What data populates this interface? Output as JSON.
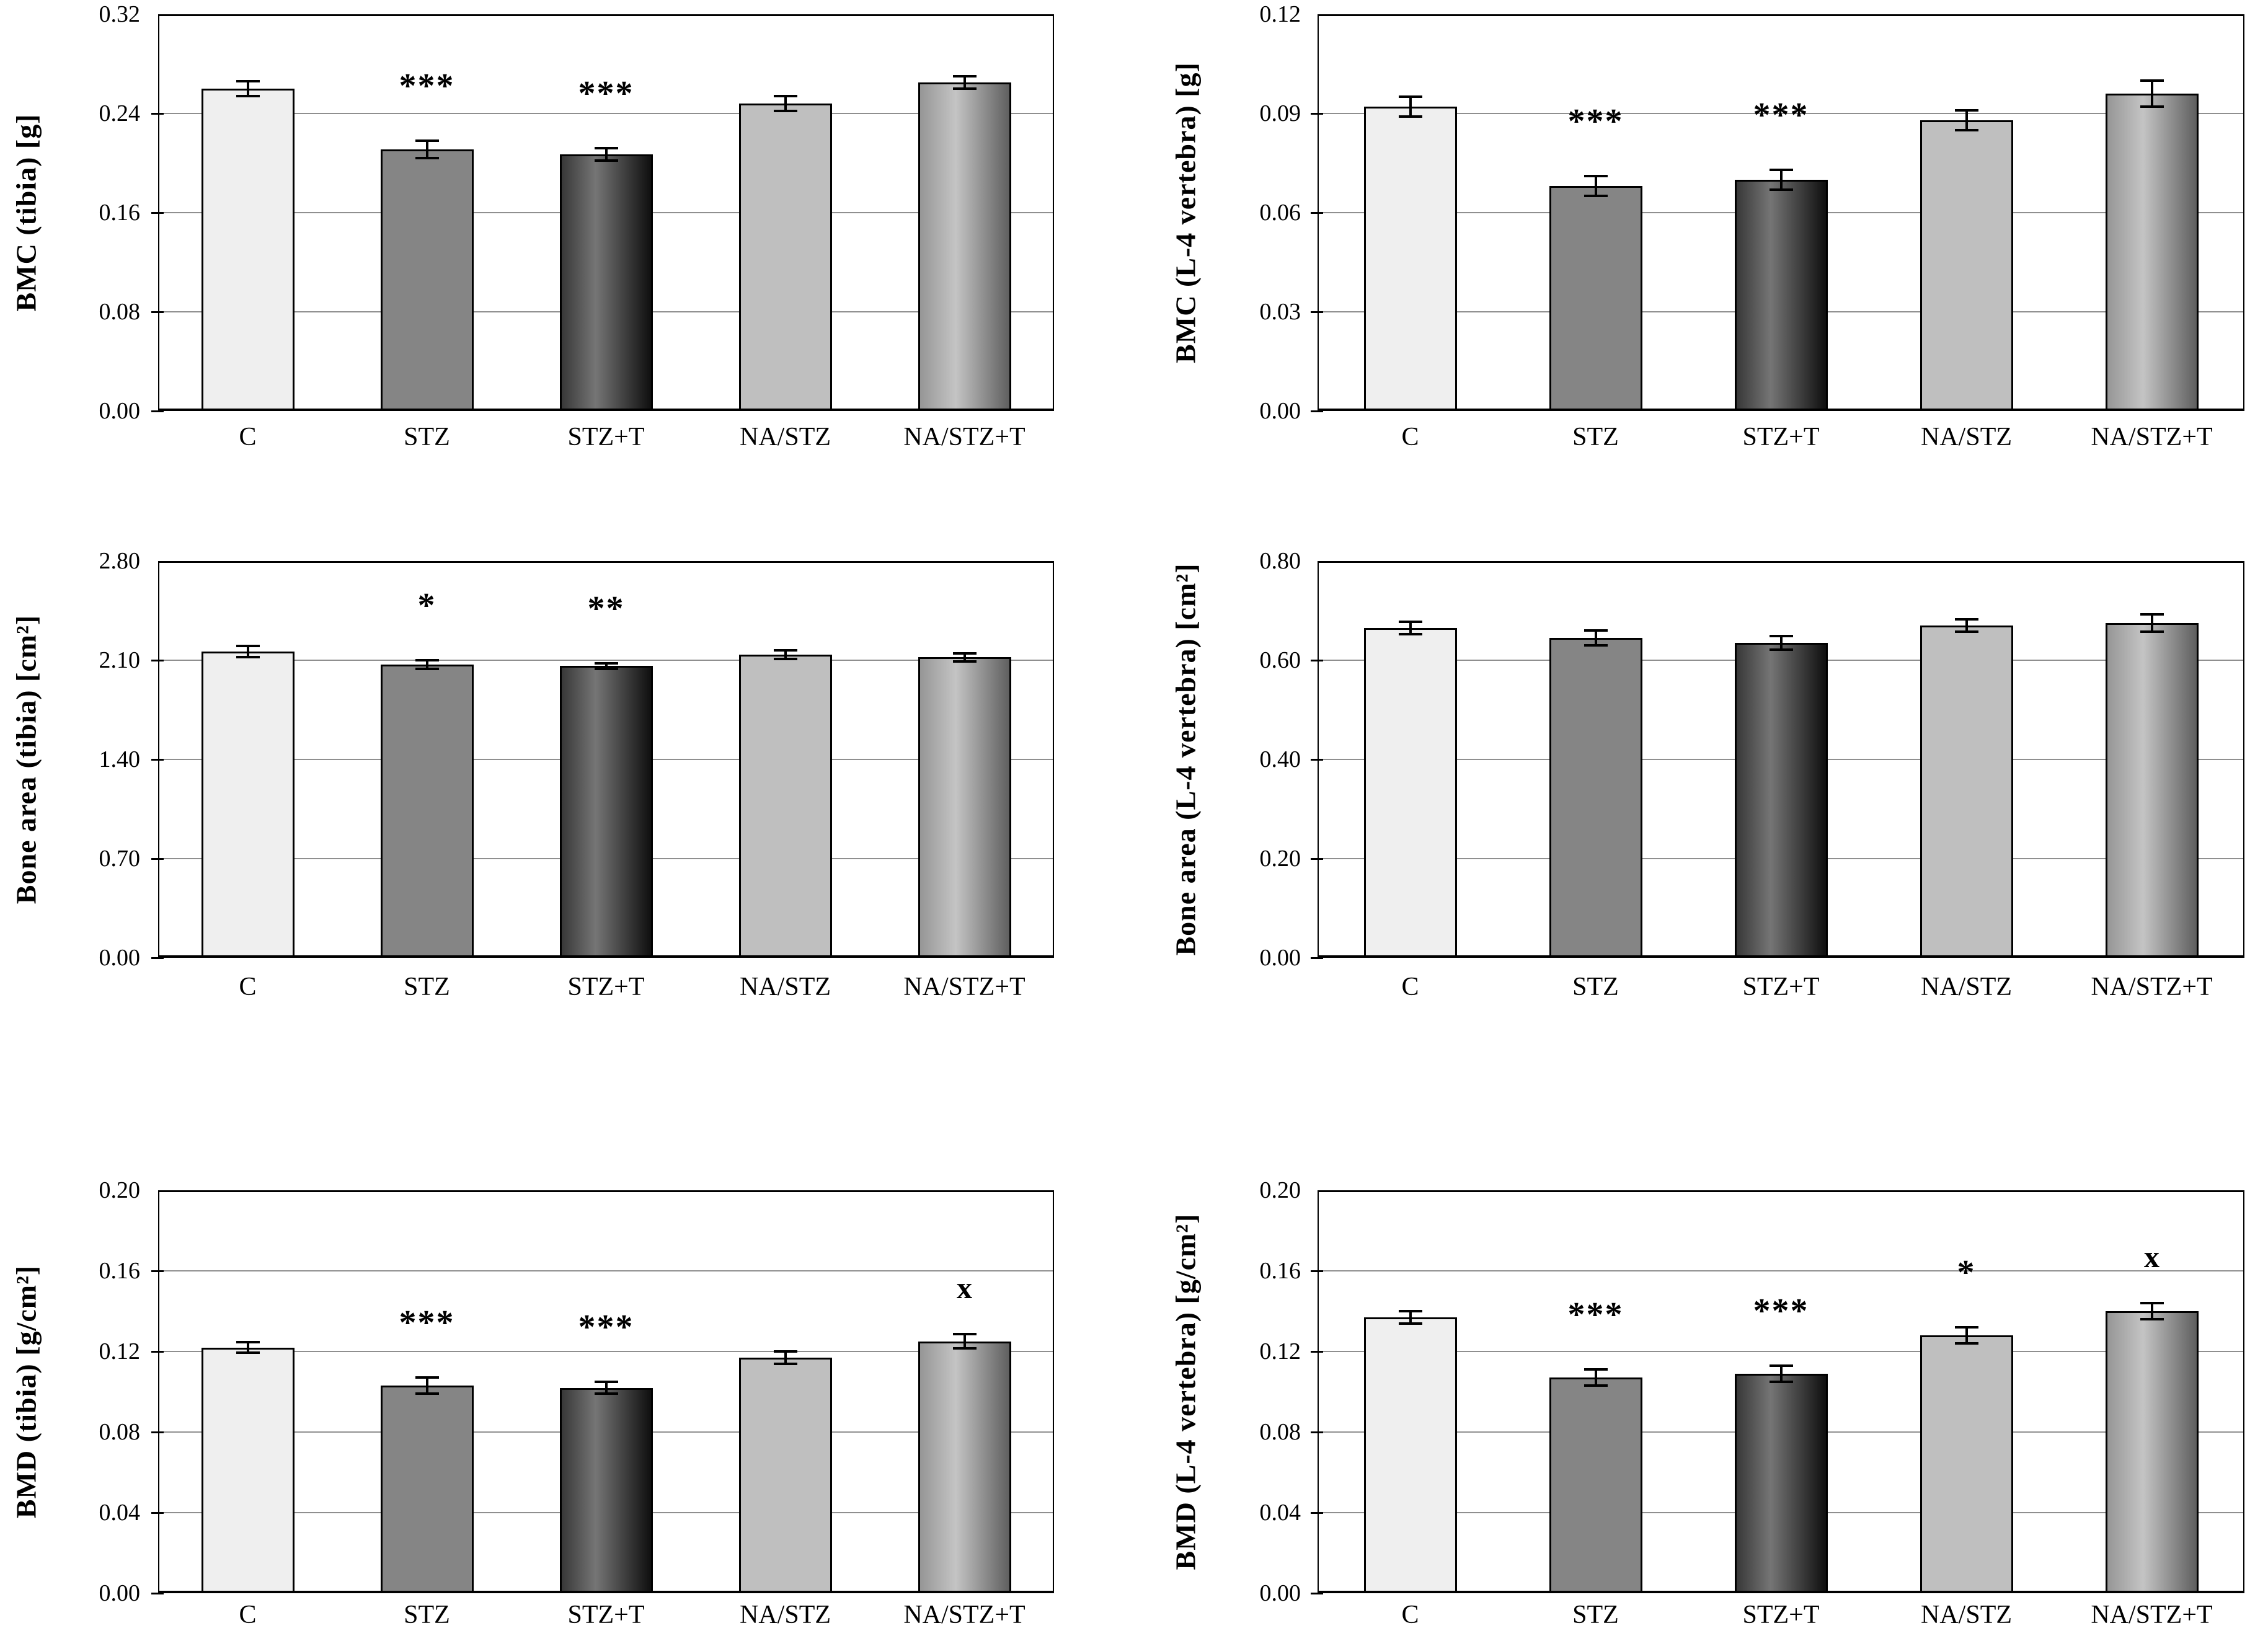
{
  "figure": {
    "background": "#ffffff",
    "axis_color": "#000000",
    "grid_color": "#8f8f8f",
    "text_color": "#000000"
  },
  "categories": [
    "C",
    "STZ",
    "STZ+T",
    "NA/STZ",
    "NA/STZ+T"
  ],
  "bar_styles": [
    {
      "category": "C",
      "fill_type": "flat",
      "fill": "#efefef"
    },
    {
      "category": "STZ",
      "fill_type": "flat",
      "fill": "#858585"
    },
    {
      "category": "STZ+T",
      "fill_type": "gradient",
      "stops": [
        "#383838",
        "#757575",
        "#0f0f0f"
      ],
      "highlight_pos": 0.38
    },
    {
      "category": "NA/STZ",
      "fill_type": "flat",
      "fill": "#bfbfbf"
    },
    {
      "category": "NA/STZ+T",
      "fill_type": "gradient",
      "stops": [
        "#969696",
        "#c4c4c4",
        "#5f5f5f"
      ],
      "highlight_pos": 0.4
    }
  ],
  "chart_data": [
    {
      "id": "bmc-tibia",
      "type": "bar",
      "position": "r1-left",
      "ylabel": "BMC (tibia)  [g]",
      "ylim": [
        0,
        0.32
      ],
      "yticks": [
        "0.00",
        "0.08",
        "0.16",
        "0.24",
        "0.32"
      ],
      "categories": [
        "C",
        "STZ",
        "STZ+T",
        "NA/STZ",
        "NA/STZ+T"
      ],
      "values": [
        0.26,
        0.211,
        0.207,
        0.248,
        0.265
      ],
      "errors": [
        0.006,
        0.007,
        0.005,
        0.006,
        0.005
      ],
      "markers": [
        "",
        "***",
        "***",
        "",
        ""
      ],
      "grid": true,
      "legend": "none"
    },
    {
      "id": "bmc-l4-vertebra",
      "type": "bar",
      "position": "r1-right",
      "ylabel": "BMC (L-4 vertebra)  [g]",
      "ylim": [
        0,
        0.12
      ],
      "yticks": [
        "0.00",
        "0.03",
        "0.06",
        "0.09",
        "0.12"
      ],
      "categories": [
        "C",
        "STZ",
        "STZ+T",
        "NA/STZ",
        "NA/STZ+T"
      ],
      "values": [
        0.092,
        0.068,
        0.07,
        0.088,
        0.096
      ],
      "errors": [
        0.003,
        0.003,
        0.003,
        0.003,
        0.004
      ],
      "markers": [
        "",
        "***",
        "***",
        "",
        ""
      ],
      "grid": true,
      "legend": "none"
    },
    {
      "id": "bone-area-tibia",
      "type": "bar",
      "position": "r2-left",
      "ylabel": "Bone area  (tibia)  [cm²]",
      "ylim": [
        0,
        2.8
      ],
      "yticks": [
        "0.00",
        "0.70",
        "1.40",
        "2.10",
        "2.80"
      ],
      "categories": [
        "C",
        "STZ",
        "STZ+T",
        "NA/STZ",
        "NA/STZ+T"
      ],
      "values": [
        2.16,
        2.07,
        2.06,
        2.14,
        2.12
      ],
      "errors": [
        0.04,
        0.03,
        0.02,
        0.03,
        0.03
      ],
      "markers": [
        "",
        "*",
        "**",
        "",
        ""
      ],
      "grid": true,
      "legend": "none"
    },
    {
      "id": "bone-area-l4-vertebra",
      "type": "bar",
      "position": "r2-right",
      "ylabel": "Bone area (L-4 vertebra)  [cm²]",
      "ylim": [
        0,
        0.8
      ],
      "yticks": [
        "0.00",
        "0.20",
        "0.40",
        "0.60",
        "0.80"
      ],
      "categories": [
        "C",
        "STZ",
        "STZ+T",
        "NA/STZ",
        "NA/STZ+T"
      ],
      "values": [
        0.665,
        0.645,
        0.635,
        0.67,
        0.675
      ],
      "errors": [
        0.013,
        0.015,
        0.014,
        0.013,
        0.018
      ],
      "markers": [
        "",
        "",
        "",
        "",
        ""
      ],
      "grid": true,
      "legend": "none"
    },
    {
      "id": "bmd-tibia",
      "type": "bar",
      "position": "r3-left",
      "ylabel": "BMD (tibia)  [g/cm²]",
      "ylim": [
        0,
        0.2
      ],
      "yticks": [
        "0.00",
        "0.04",
        "0.08",
        "0.12",
        "0.16",
        "0.20"
      ],
      "categories": [
        "C",
        "STZ",
        "STZ+T",
        "NA/STZ",
        "NA/STZ+T"
      ],
      "values": [
        0.122,
        0.103,
        0.102,
        0.117,
        0.125
      ],
      "errors": [
        0.0025,
        0.004,
        0.003,
        0.003,
        0.0035
      ],
      "markers": [
        "",
        "***",
        "***",
        "",
        "x"
      ],
      "grid": true,
      "legend": "none"
    },
    {
      "id": "bmd-l4-vertebra",
      "type": "bar",
      "position": "r3-right",
      "ylabel": "BMD (L-4 vertebra)  [g/cm²]",
      "ylim": [
        0,
        0.2
      ],
      "yticks": [
        "0.00",
        "0.04",
        "0.08",
        "0.12",
        "0.16",
        "0.20"
      ],
      "categories": [
        "C",
        "STZ",
        "STZ+T",
        "NA/STZ",
        "NA/STZ+T"
      ],
      "values": [
        0.137,
        0.107,
        0.109,
        0.128,
        0.14
      ],
      "errors": [
        0.003,
        0.004,
        0.004,
        0.004,
        0.004
      ],
      "markers": [
        "",
        "***",
        "***",
        "*",
        "x"
      ],
      "grid": true,
      "legend": "none"
    }
  ]
}
